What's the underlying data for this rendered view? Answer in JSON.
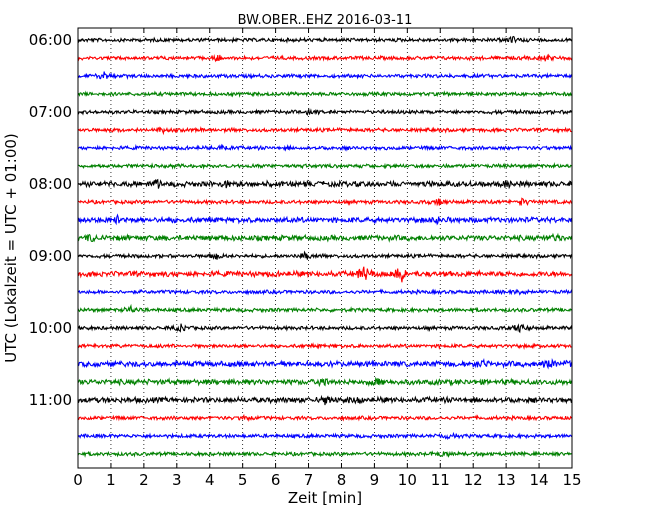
{
  "chart_data": {
    "type": "line",
    "title": "BW.OBER..EHZ 2016-03-11",
    "xlabel": "Zeit  [min]",
    "ylabel": "UTC (Lokalzeit = UTC + 01:00)",
    "xlim": [
      0,
      15
    ],
    "x_ticks": [
      "0",
      "1",
      "2",
      "3",
      "4",
      "5",
      "6",
      "7",
      "8",
      "9",
      "10",
      "11",
      "12",
      "13",
      "14",
      "15"
    ],
    "y_tick_labels": [
      "06:00",
      "07:00",
      "08:00",
      "09:00",
      "10:00",
      "11:00"
    ],
    "trace_interval_min": 15,
    "grid": "vertical dotted",
    "colors": [
      "#000000",
      "#ff0000",
      "#0000ff",
      "#008000"
    ],
    "traces": [
      {
        "start": "06:00",
        "color": "#000000",
        "amplitude": 2,
        "events": [
          13.2
        ]
      },
      {
        "start": "06:15",
        "color": "#ff0000",
        "amplitude": 2,
        "events": [
          4.2,
          14.2
        ]
      },
      {
        "start": "06:30",
        "color": "#0000ff",
        "amplitude": 2,
        "events": [
          0.8
        ]
      },
      {
        "start": "06:45",
        "color": "#008000",
        "amplitude": 2,
        "events": []
      },
      {
        "start": "07:00",
        "color": "#000000",
        "amplitude": 2,
        "events": [
          7.0
        ]
      },
      {
        "start": "07:15",
        "color": "#ff0000",
        "amplitude": 2,
        "events": [
          2.5
        ]
      },
      {
        "start": "07:30",
        "color": "#0000ff",
        "amplitude": 2,
        "events": [
          4.4
        ]
      },
      {
        "start": "07:45",
        "color": "#008000",
        "amplitude": 2,
        "events": []
      },
      {
        "start": "08:00",
        "color": "#000000",
        "amplitude": 3,
        "events": [
          2.4,
          4.5,
          13.0
        ]
      },
      {
        "start": "08:15",
        "color": "#ff0000",
        "amplitude": 2,
        "events": [
          11.0,
          13.5
        ]
      },
      {
        "start": "08:30",
        "color": "#0000ff",
        "amplitude": 3,
        "events": [
          1.2,
          11.0
        ]
      },
      {
        "start": "08:45",
        "color": "#008000",
        "amplitude": 3,
        "events": [
          0.4,
          14.5
        ]
      },
      {
        "start": "09:00",
        "color": "#000000",
        "amplitude": 2,
        "events": [
          4.2,
          6.9
        ]
      },
      {
        "start": "09:15",
        "color": "#ff0000",
        "amplitude": 3,
        "events": [
          8.7,
          9.8
        ]
      },
      {
        "start": "09:30",
        "color": "#0000ff",
        "amplitude": 2,
        "events": [
          13.5
        ]
      },
      {
        "start": "09:45",
        "color": "#008000",
        "amplitude": 2,
        "events": [
          1.6
        ]
      },
      {
        "start": "10:00",
        "color": "#000000",
        "amplitude": 2,
        "events": [
          3.1,
          13.4
        ]
      },
      {
        "start": "10:15",
        "color": "#ff0000",
        "amplitude": 2,
        "events": []
      },
      {
        "start": "10:30",
        "color": "#0000ff",
        "amplitude": 3,
        "events": [
          12.3,
          14.3,
          14.9
        ]
      },
      {
        "start": "10:45",
        "color": "#008000",
        "amplitude": 3,
        "events": [
          7.5,
          9.0
        ]
      },
      {
        "start": "11:00",
        "color": "#000000",
        "amplitude": 3,
        "events": [
          7.5,
          8.3
        ]
      },
      {
        "start": "11:15",
        "color": "#ff0000",
        "amplitude": 2,
        "events": [
          5.2
        ]
      },
      {
        "start": "11:30",
        "color": "#0000ff",
        "amplitude": 2,
        "events": [
          11.3
        ]
      },
      {
        "start": "11:45",
        "color": "#008000",
        "amplitude": 2,
        "events": [
          11.1
        ]
      }
    ]
  }
}
